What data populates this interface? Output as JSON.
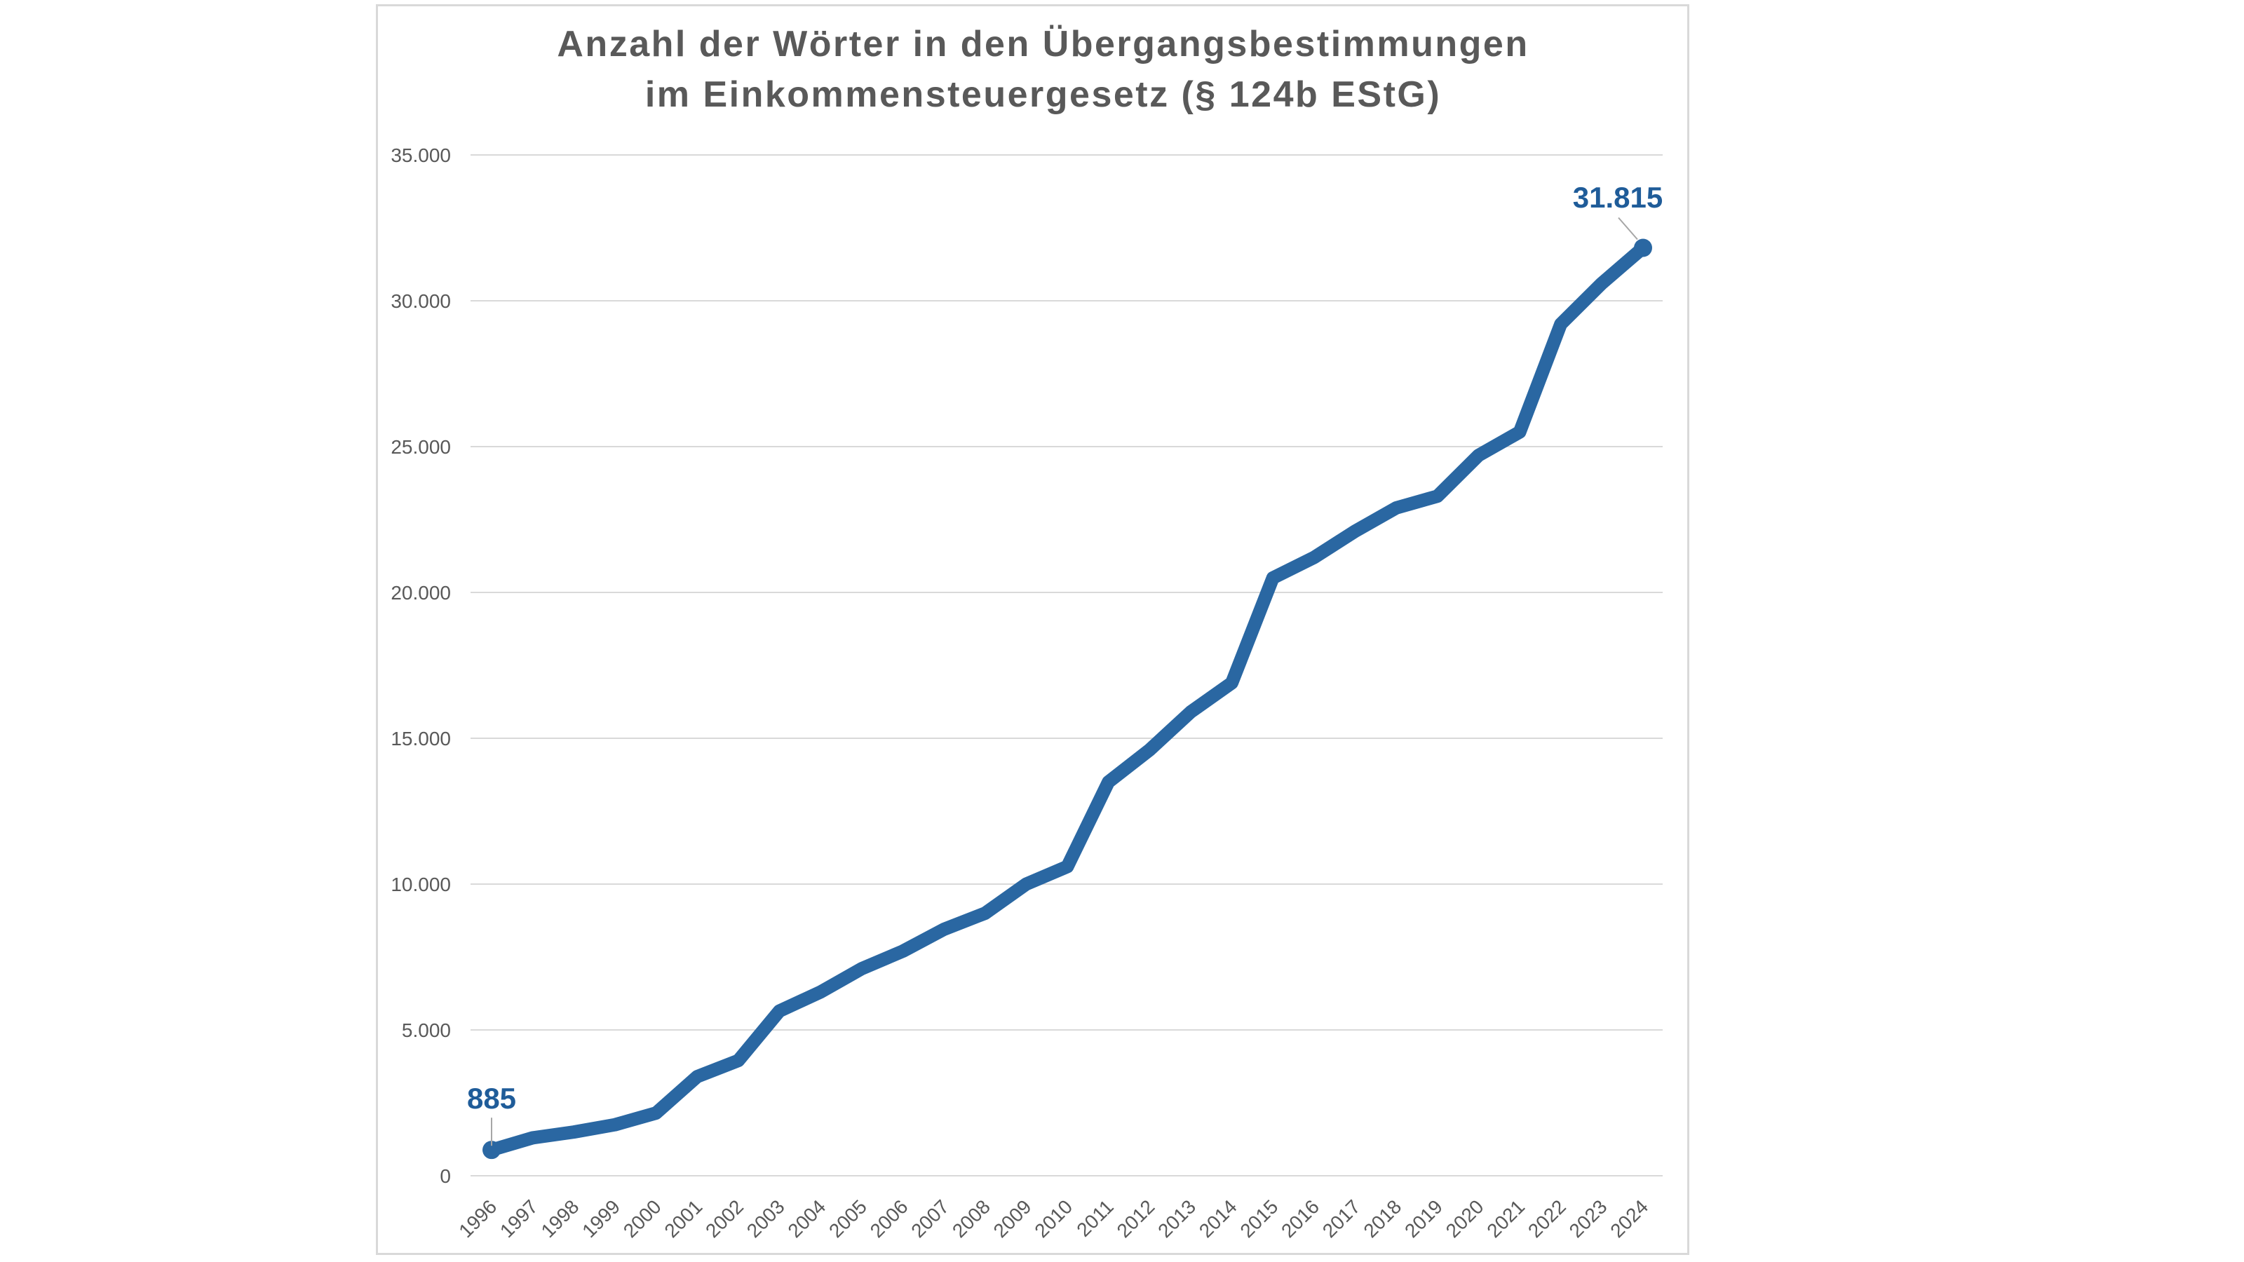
{
  "title_line1": "Anzahl der Wörter in den Übergangsbestimmungen",
  "title_line2": "im Einkommensteuergesetz (§ 124b EStG)",
  "colors": {
    "line": "#2A67A2",
    "data_label": "#1F5C99",
    "axis_text": "#595959",
    "gridline": "#D9D9D9",
    "leader_line": "#A6A6A6",
    "frame_border": "#D9D9D9",
    "title_text": "#595959"
  },
  "chart_data": {
    "type": "line",
    "title": "Anzahl der Wörter in den Übergangsbestimmungen im Einkommensteuergesetz (§ 124b EStG)",
    "xlabel": "",
    "ylabel": "",
    "x": [
      1996,
      1997,
      1998,
      1999,
      2000,
      2001,
      2002,
      2003,
      2004,
      2005,
      2006,
      2007,
      2008,
      2009,
      2010,
      2011,
      2012,
      2013,
      2014,
      2015,
      2016,
      2017,
      2018,
      2019,
      2020,
      2021,
      2022,
      2023,
      2024
    ],
    "values": [
      885,
      1300,
      1500,
      1750,
      2150,
      3400,
      3950,
      5650,
      6300,
      7100,
      7700,
      8450,
      9000,
      10000,
      10600,
      13500,
      14600,
      15900,
      16900,
      20500,
      21200,
      22100,
      22900,
      23300,
      24700,
      25500,
      29200,
      30600,
      31815
    ],
    "ylim": [
      0,
      35000
    ],
    "ytick_step": 5000,
    "ytick_labels": [
      "0",
      "5.000",
      "10.000",
      "15.000",
      "20.000",
      "25.000",
      "30.000",
      "35.000"
    ],
    "grid": "horizontal",
    "legend": "none",
    "annotations": [
      {
        "x": 1996,
        "label": "885"
      },
      {
        "x": 2024,
        "label": "31.815"
      }
    ]
  }
}
